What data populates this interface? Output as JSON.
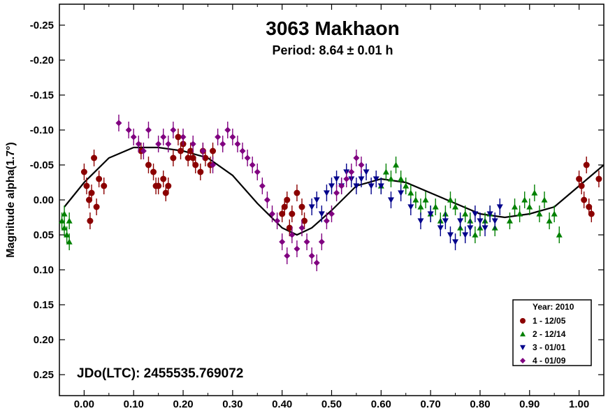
{
  "chart_data": {
    "type": "scatter",
    "title": "3063 Makhaon",
    "subtitle": "Period: 8.64 ± 0.01 h",
    "ylabel": "Magnitude alpha(1.7°)",
    "xlabel": "",
    "annotation": "JDo(LTC): 2455535.769072",
    "xlim": [
      -0.05,
      1.05
    ],
    "ylim": [
      -0.28,
      0.28
    ],
    "y_inverted": true,
    "grid": false,
    "x_ticks": [
      "0.00",
      "0.10",
      "0.20",
      "0.30",
      "0.40",
      "0.50",
      "0.60",
      "0.70",
      "0.80",
      "0.90",
      "1.00"
    ],
    "y_ticks": [
      "-0.25",
      "-0.20",
      "-0.15",
      "-0.10",
      "-0.05",
      "0.00",
      "0.05",
      "0.10",
      "0.15",
      "0.20",
      "0.25"
    ],
    "legend": {
      "title": "Year: 2010",
      "placement": "bottom-right",
      "entries": [
        {
          "label": "1 - 12/05",
          "color": "#8b0000",
          "marker": "circle"
        },
        {
          "label": "2 - 12/14",
          "color": "#008000",
          "marker": "triangle-up"
        },
        {
          "label": "3 - 01/01",
          "color": "#00008b",
          "marker": "triangle-down"
        },
        {
          "label": "4 - 01/09",
          "color": "#800080",
          "marker": "diamond"
        }
      ]
    },
    "series": [
      {
        "color": "#8b0000",
        "marker": "circle",
        "points": [
          [
            0.0,
            -0.04
          ],
          [
            0.005,
            -0.02
          ],
          [
            0.01,
            0.0
          ],
          [
            0.012,
            0.03
          ],
          [
            0.015,
            -0.01
          ],
          [
            0.02,
            -0.06
          ],
          [
            0.025,
            0.01
          ],
          [
            0.03,
            -0.03
          ],
          [
            0.04,
            -0.02
          ],
          [
            0.115,
            -0.07
          ],
          [
            0.13,
            -0.05
          ],
          [
            0.14,
            -0.04
          ],
          [
            0.145,
            -0.02
          ],
          [
            0.15,
            -0.02
          ],
          [
            0.16,
            -0.03
          ],
          [
            0.165,
            -0.01
          ],
          [
            0.17,
            -0.02
          ],
          [
            0.18,
            -0.06
          ],
          [
            0.19,
            -0.09
          ],
          [
            0.195,
            -0.07
          ],
          [
            0.2,
            -0.08
          ],
          [
            0.21,
            -0.06
          ],
          [
            0.215,
            -0.07
          ],
          [
            0.22,
            -0.06
          ],
          [
            0.225,
            -0.05
          ],
          [
            0.235,
            -0.04
          ],
          [
            0.24,
            -0.07
          ],
          [
            0.245,
            -0.06
          ],
          [
            0.255,
            -0.05
          ],
          [
            0.26,
            -0.07
          ],
          [
            0.4,
            0.02
          ],
          [
            0.405,
            0.01
          ],
          [
            0.41,
            0.0
          ],
          [
            0.415,
            0.04
          ],
          [
            0.42,
            0.02
          ],
          [
            0.43,
            -0.01
          ],
          [
            0.44,
            0.01
          ],
          [
            0.445,
            0.03
          ],
          [
            1.0,
            -0.03
          ],
          [
            1.005,
            -0.02
          ],
          [
            1.01,
            0.0
          ],
          [
            1.015,
            -0.05
          ],
          [
            1.02,
            0.01
          ],
          [
            1.025,
            0.02
          ],
          [
            1.04,
            -0.03
          ]
        ]
      },
      {
        "color": "#008000",
        "marker": "triangle-up",
        "points": [
          [
            -0.045,
            0.03
          ],
          [
            -0.04,
            0.04
          ],
          [
            -0.04,
            0.02
          ],
          [
            -0.035,
            0.05
          ],
          [
            -0.03,
            0.06
          ],
          [
            -0.03,
            0.03
          ],
          [
            0.6,
            -0.02
          ],
          [
            0.61,
            -0.04
          ],
          [
            0.62,
            -0.03
          ],
          [
            0.63,
            -0.05
          ],
          [
            0.64,
            -0.03
          ],
          [
            0.65,
            -0.02
          ],
          [
            0.66,
            -0.01
          ],
          [
            0.67,
            0.0
          ],
          [
            0.68,
            0.01
          ],
          [
            0.69,
            0.0
          ],
          [
            0.7,
            0.02
          ],
          [
            0.71,
            0.01
          ],
          [
            0.72,
            0.03
          ],
          [
            0.73,
            0.02
          ],
          [
            0.74,
            0.0
          ],
          [
            0.75,
            0.01
          ],
          [
            0.76,
            0.04
          ],
          [
            0.77,
            0.02
          ],
          [
            0.78,
            0.03
          ],
          [
            0.79,
            0.05
          ],
          [
            0.8,
            0.04
          ],
          [
            0.81,
            0.03
          ],
          [
            0.82,
            0.02
          ],
          [
            0.83,
            0.04
          ],
          [
            0.86,
            0.03
          ],
          [
            0.87,
            0.01
          ],
          [
            0.88,
            0.02
          ],
          [
            0.89,
            0.0
          ],
          [
            0.9,
            0.01
          ],
          [
            0.91,
            -0.01
          ],
          [
            0.92,
            0.02
          ],
          [
            0.93,
            0.0
          ],
          [
            0.94,
            0.03
          ],
          [
            0.95,
            0.02
          ],
          [
            0.96,
            0.05
          ]
        ]
      },
      {
        "color": "#00008b",
        "marker": "triangle-down",
        "points": [
          [
            0.46,
            0.01
          ],
          [
            0.47,
            0.0
          ],
          [
            0.48,
            0.02
          ],
          [
            0.49,
            -0.01
          ],
          [
            0.5,
            -0.02
          ],
          [
            0.51,
            -0.03
          ],
          [
            0.52,
            -0.02
          ],
          [
            0.53,
            -0.04
          ],
          [
            0.54,
            -0.03
          ],
          [
            0.55,
            -0.02
          ],
          [
            0.56,
            -0.03
          ],
          [
            0.57,
            -0.04
          ],
          [
            0.58,
            -0.02
          ],
          [
            0.59,
            -0.03
          ],
          [
            0.6,
            -0.02
          ],
          [
            0.62,
            0.0
          ],
          [
            0.64,
            -0.01
          ],
          [
            0.66,
            0.01
          ],
          [
            0.68,
            0.03
          ],
          [
            0.7,
            0.02
          ],
          [
            0.72,
            0.04
          ],
          [
            0.73,
            0.03
          ],
          [
            0.74,
            0.05
          ],
          [
            0.75,
            0.06
          ],
          [
            0.76,
            0.03
          ],
          [
            0.77,
            0.05
          ],
          [
            0.78,
            0.04
          ],
          [
            0.79,
            0.02
          ],
          [
            0.8,
            0.03
          ],
          [
            0.81,
            0.04
          ],
          [
            0.82,
            0.02
          ],
          [
            0.83,
            0.03
          ],
          [
            0.84,
            0.01
          ]
        ]
      },
      {
        "color": "#800080",
        "marker": "diamond",
        "points": [
          [
            0.07,
            -0.11
          ],
          [
            0.09,
            -0.1
          ],
          [
            0.1,
            -0.09
          ],
          [
            0.11,
            -0.08
          ],
          [
            0.12,
            -0.07
          ],
          [
            0.13,
            -0.1
          ],
          [
            0.15,
            -0.08
          ],
          [
            0.16,
            -0.09
          ],
          [
            0.17,
            -0.08
          ],
          [
            0.18,
            -0.1
          ],
          [
            0.2,
            -0.09
          ],
          [
            0.22,
            -0.08
          ],
          [
            0.24,
            -0.07
          ],
          [
            0.26,
            -0.05
          ],
          [
            0.27,
            -0.09
          ],
          [
            0.28,
            -0.08
          ],
          [
            0.29,
            -0.1
          ],
          [
            0.3,
            -0.09
          ],
          [
            0.31,
            -0.08
          ],
          [
            0.32,
            -0.07
          ],
          [
            0.33,
            -0.06
          ],
          [
            0.34,
            -0.05
          ],
          [
            0.35,
            -0.04
          ],
          [
            0.36,
            -0.02
          ],
          [
            0.37,
            0.0
          ],
          [
            0.38,
            0.02
          ],
          [
            0.39,
            0.03
          ],
          [
            0.4,
            0.06
          ],
          [
            0.41,
            0.08
          ],
          [
            0.42,
            0.05
          ],
          [
            0.43,
            0.07
          ],
          [
            0.44,
            0.04
          ],
          [
            0.45,
            0.06
          ],
          [
            0.46,
            0.08
          ],
          [
            0.47,
            0.09
          ],
          [
            0.48,
            0.06
          ],
          [
            0.49,
            0.03
          ],
          [
            0.5,
            0.02
          ],
          [
            0.51,
            -0.01
          ],
          [
            0.52,
            -0.02
          ],
          [
            0.53,
            -0.03
          ],
          [
            0.54,
            -0.04
          ],
          [
            0.55,
            -0.06
          ],
          [
            0.56,
            -0.05
          ]
        ]
      }
    ],
    "fit_curve": {
      "color": "#000000",
      "points": [
        [
          -0.04,
          0.01
        ],
        [
          0.0,
          -0.025
        ],
        [
          0.05,
          -0.06
        ],
        [
          0.1,
          -0.075
        ],
        [
          0.15,
          -0.075
        ],
        [
          0.2,
          -0.07
        ],
        [
          0.25,
          -0.06
        ],
        [
          0.3,
          -0.035
        ],
        [
          0.35,
          0.005
        ],
        [
          0.4,
          0.04
        ],
        [
          0.43,
          0.05
        ],
        [
          0.46,
          0.04
        ],
        [
          0.5,
          0.015
        ],
        [
          0.55,
          -0.02
        ],
        [
          0.6,
          -0.03
        ],
        [
          0.65,
          -0.025
        ],
        [
          0.7,
          -0.01
        ],
        [
          0.75,
          0.005
        ],
        [
          0.8,
          0.02
        ],
        [
          0.85,
          0.025
        ],
        [
          0.9,
          0.02
        ],
        [
          0.95,
          0.01
        ],
        [
          1.0,
          -0.02
        ],
        [
          1.05,
          -0.05
        ]
      ]
    }
  }
}
